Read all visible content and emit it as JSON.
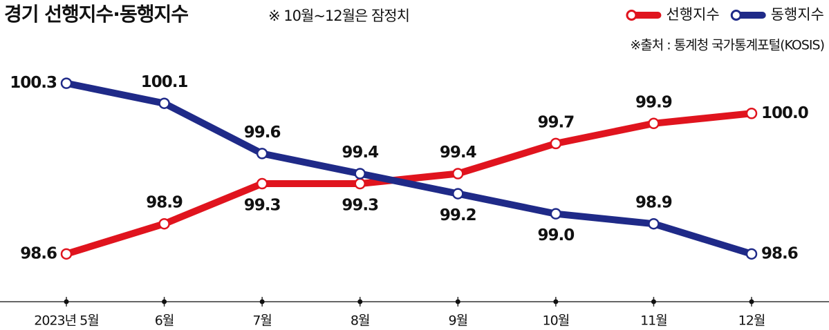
{
  "chart_data": {
    "type": "line",
    "title": "경기 선행지수·동행지수",
    "subtitle": "※ 10월~12월은 잠정치",
    "source": "※출처 : 통계청 국가통계포털(KOSIS)",
    "categories": [
      "2023년 5월",
      "6월",
      "7월",
      "8월",
      "9월",
      "10월",
      "11월",
      "12월"
    ],
    "series": [
      {
        "name": "선행지수",
        "color": "#e0141e",
        "values": [
          98.6,
          98.9,
          99.3,
          99.3,
          99.4,
          99.7,
          99.9,
          100
        ],
        "value_labels": [
          "98.6",
          "98.9",
          "99.3",
          "99.3",
          "99.4",
          "99.7",
          "99.9",
          "100.0"
        ]
      },
      {
        "name": "동행지수",
        "color": "#1f2a88",
        "values": [
          100.3,
          100.1,
          99.6,
          99.4,
          99.2,
          99.0,
          98.9,
          98.6
        ],
        "value_labels": [
          "100.3",
          "100.1",
          "99.6",
          "99.4",
          "99.2",
          "99.0",
          "98.9",
          "98.6"
        ]
      }
    ],
    "ylim": [
      98.2,
      100.6
    ],
    "legend": "top-right"
  }
}
